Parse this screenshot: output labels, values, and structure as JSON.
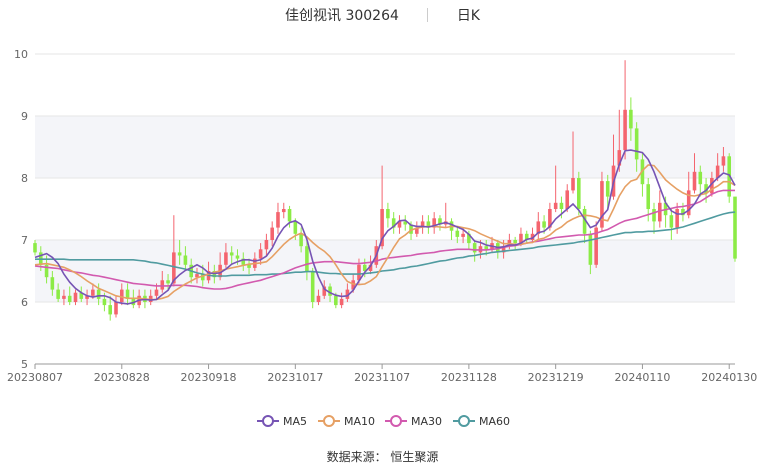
{
  "header": {
    "stock_name": "佳创视讯 300264",
    "period": "日K"
  },
  "footer": {
    "source_label": "数据来源：",
    "source_name": "恒生聚源"
  },
  "colors": {
    "up": "#F4646E",
    "down": "#8CEB46",
    "ma5": "#7654B4",
    "ma10": "#E6A064",
    "ma30": "#D25AAF",
    "ma60": "#509BA0"
  },
  "chart_data": {
    "type": "candlestick",
    "ylim": [
      5,
      10
    ],
    "yticks": [
      5,
      6,
      7,
      8,
      9,
      10
    ],
    "xtick_labels": [
      "20230807",
      "20230828",
      "20230918",
      "20231017",
      "20231107",
      "20231128",
      "20231219",
      "20240110",
      "20240130"
    ],
    "xtick_index": [
      0,
      15,
      30,
      45,
      60,
      75,
      90,
      105,
      120
    ],
    "legend": [
      "MA5",
      "MA10",
      "MA30",
      "MA60"
    ],
    "candles": [
      [
        6.95,
        6.8,
        7.0,
        6.75
      ],
      [
        6.8,
        6.6,
        6.9,
        6.5
      ],
      [
        6.6,
        6.4,
        6.75,
        6.3
      ],
      [
        6.4,
        6.2,
        6.5,
        6.1
      ],
      [
        6.2,
        6.05,
        6.3,
        6.0
      ],
      [
        6.05,
        6.1,
        6.2,
        5.95
      ],
      [
        6.1,
        6.0,
        6.25,
        5.95
      ],
      [
        6.0,
        6.15,
        6.2,
        5.95
      ],
      [
        6.15,
        6.05,
        6.25,
        6.0
      ],
      [
        6.05,
        6.1,
        6.2,
        5.95
      ],
      [
        6.1,
        6.2,
        6.3,
        6.05
      ],
      [
        6.2,
        6.05,
        6.3,
        5.95
      ],
      [
        6.05,
        5.95,
        6.15,
        5.85
      ],
      [
        5.95,
        5.8,
        6.1,
        5.7
      ],
      [
        5.8,
        6.0,
        6.1,
        5.75
      ],
      [
        6.0,
        6.2,
        6.3,
        5.95
      ],
      [
        6.2,
        6.05,
        6.3,
        5.95
      ],
      [
        6.05,
        5.95,
        6.2,
        5.9
      ],
      [
        5.95,
        6.1,
        6.2,
        5.9
      ],
      [
        6.1,
        6.0,
        6.2,
        5.9
      ],
      [
        6.0,
        6.1,
        6.2,
        5.95
      ],
      [
        6.1,
        6.2,
        6.3,
        6.05
      ],
      [
        6.2,
        6.35,
        6.5,
        6.15
      ],
      [
        6.35,
        6.3,
        6.45,
        6.2
      ],
      [
        6.3,
        6.8,
        7.4,
        6.25
      ],
      [
        6.8,
        6.75,
        7.0,
        6.6
      ],
      [
        6.75,
        6.6,
        6.9,
        6.5
      ],
      [
        6.6,
        6.4,
        6.7,
        6.3
      ],
      [
        6.4,
        6.45,
        6.55,
        6.3
      ],
      [
        6.45,
        6.35,
        6.6,
        6.25
      ],
      [
        6.35,
        6.5,
        6.65,
        6.3
      ],
      [
        6.5,
        6.4,
        6.6,
        6.3
      ],
      [
        6.4,
        6.6,
        6.8,
        6.35
      ],
      [
        6.6,
        6.8,
        6.95,
        6.55
      ],
      [
        6.8,
        6.75,
        6.9,
        6.6
      ],
      [
        6.75,
        6.7,
        6.85,
        6.6
      ],
      [
        6.7,
        6.6,
        6.8,
        6.5
      ],
      [
        6.6,
        6.55,
        6.7,
        6.45
      ],
      [
        6.55,
        6.7,
        6.8,
        6.5
      ],
      [
        6.7,
        6.85,
        6.95,
        6.6
      ],
      [
        6.85,
        7.0,
        7.1,
        6.75
      ],
      [
        7.0,
        7.2,
        7.3,
        6.9
      ],
      [
        7.2,
        7.45,
        7.6,
        7.1
      ],
      [
        7.45,
        7.5,
        7.6,
        7.35
      ],
      [
        7.5,
        7.3,
        7.55,
        7.2
      ],
      [
        7.3,
        7.1,
        7.35,
        7.0
      ],
      [
        7.1,
        6.9,
        7.2,
        6.8
      ],
      [
        6.9,
        6.5,
        7.0,
        6.35
      ],
      [
        6.5,
        6.0,
        6.55,
        5.9
      ],
      [
        6.0,
        6.1,
        6.2,
        5.95
      ],
      [
        6.1,
        6.25,
        6.35,
        6.05
      ],
      [
        6.25,
        6.1,
        6.3,
        6.0
      ],
      [
        6.1,
        5.95,
        6.15,
        5.9
      ],
      [
        5.95,
        6.05,
        6.15,
        5.9
      ],
      [
        6.05,
        6.2,
        6.3,
        6.0
      ],
      [
        6.2,
        6.35,
        6.45,
        6.15
      ],
      [
        6.35,
        6.6,
        6.7,
        6.3
      ],
      [
        6.6,
        6.5,
        6.7,
        6.4
      ],
      [
        6.5,
        6.6,
        6.75,
        6.45
      ],
      [
        6.6,
        6.9,
        7.0,
        6.55
      ],
      [
        6.9,
        7.5,
        8.2,
        6.85
      ],
      [
        7.5,
        7.35,
        7.6,
        7.2
      ],
      [
        7.35,
        7.2,
        7.45,
        7.1
      ],
      [
        7.2,
        7.3,
        7.4,
        7.1
      ],
      [
        7.3,
        7.25,
        7.4,
        7.15
      ],
      [
        7.25,
        7.1,
        7.3,
        7.0
      ],
      [
        7.1,
        7.2,
        7.3,
        7.05
      ],
      [
        7.2,
        7.3,
        7.4,
        7.1
      ],
      [
        7.3,
        7.2,
        7.4,
        7.1
      ],
      [
        7.2,
        7.35,
        7.45,
        7.1
      ],
      [
        7.35,
        7.25,
        7.4,
        7.15
      ],
      [
        7.25,
        7.3,
        7.6,
        7.2
      ],
      [
        7.3,
        7.15,
        7.35,
        7.0
      ],
      [
        7.15,
        7.05,
        7.2,
        6.95
      ],
      [
        7.05,
        7.1,
        7.2,
        6.95
      ],
      [
        7.1,
        6.95,
        7.15,
        6.85
      ],
      [
        6.95,
        6.8,
        7.0,
        6.65
      ],
      [
        6.8,
        6.9,
        7.0,
        6.7
      ],
      [
        6.9,
        6.85,
        7.0,
        6.75
      ],
      [
        6.85,
        6.95,
        7.05,
        6.8
      ],
      [
        6.95,
        6.8,
        7.0,
        6.7
      ],
      [
        6.8,
        6.9,
        7.0,
        6.7
      ],
      [
        6.9,
        7.0,
        7.1,
        6.85
      ],
      [
        7.0,
        6.95,
        7.05,
        6.85
      ],
      [
        6.95,
        7.1,
        7.2,
        6.9
      ],
      [
        7.1,
        7.0,
        7.15,
        6.95
      ],
      [
        7.0,
        7.1,
        7.2,
        6.95
      ],
      [
        7.1,
        7.3,
        7.45,
        7.0
      ],
      [
        7.3,
        7.2,
        7.4,
        7.1
      ],
      [
        7.2,
        7.5,
        7.6,
        7.15
      ],
      [
        7.5,
        7.6,
        8.2,
        7.45
      ],
      [
        7.6,
        7.5,
        7.7,
        7.35
      ],
      [
        7.5,
        7.8,
        7.9,
        7.45
      ],
      [
        7.8,
        8.0,
        8.75,
        7.75
      ],
      [
        8.0,
        7.5,
        8.1,
        7.4
      ],
      [
        7.5,
        7.1,
        7.55,
        6.95
      ],
      [
        7.1,
        6.6,
        7.15,
        6.45
      ],
      [
        6.6,
        7.2,
        7.3,
        6.55
      ],
      [
        7.2,
        7.95,
        8.1,
        7.15
      ],
      [
        7.95,
        7.7,
        8.05,
        7.5
      ],
      [
        7.7,
        8.2,
        8.7,
        7.65
      ],
      [
        8.2,
        8.45,
        9.1,
        8.1
      ],
      [
        8.45,
        9.1,
        9.9,
        8.3
      ],
      [
        9.1,
        8.8,
        9.3,
        8.6
      ],
      [
        8.8,
        8.3,
        8.9,
        8.1
      ],
      [
        8.3,
        7.9,
        8.4,
        7.7
      ],
      [
        7.9,
        7.5,
        8.0,
        7.3
      ],
      [
        7.5,
        7.3,
        7.6,
        7.1
      ],
      [
        7.3,
        7.6,
        7.8,
        7.2
      ],
      [
        7.6,
        7.4,
        7.7,
        7.2
      ],
      [
        7.4,
        7.2,
        7.5,
        7.0
      ],
      [
        7.2,
        7.5,
        7.6,
        7.1
      ],
      [
        7.5,
        7.4,
        7.6,
        7.3
      ],
      [
        7.4,
        7.8,
        8.1,
        7.35
      ],
      [
        7.8,
        8.1,
        8.4,
        7.75
      ],
      [
        8.1,
        7.9,
        8.2,
        7.7
      ],
      [
        7.9,
        7.75,
        8.0,
        7.6
      ],
      [
        7.75,
        8.0,
        8.1,
        7.7
      ],
      [
        8.0,
        8.2,
        8.4,
        7.95
      ],
      [
        8.2,
        8.35,
        8.5,
        8.1
      ],
      [
        8.35,
        7.7,
        8.4,
        7.6
      ],
      [
        7.7,
        6.7,
        7.2,
        6.65
      ]
    ],
    "ma5": [
      6.72,
      6.75,
      6.78,
      6.72,
      6.62,
      6.45,
      6.32,
      6.22,
      6.15,
      6.1,
      6.08,
      6.1,
      6.1,
      6.07,
      6.0,
      5.98,
      5.97,
      5.99,
      6.03,
      6.04,
      6.03,
      6.04,
      6.12,
      6.19,
      6.35,
      6.44,
      6.51,
      6.55,
      6.6,
      6.55,
      6.47,
      6.46,
      6.47,
      6.53,
      6.61,
      6.65,
      6.68,
      6.68,
      6.66,
      6.68,
      6.74,
      6.87,
      7.06,
      7.2,
      7.28,
      7.31,
      7.25,
      7.01,
      6.66,
      6.4,
      6.21,
      6.15,
      6.11,
      6.09,
      6.1,
      6.19,
      6.34,
      6.48,
      6.58,
      6.75,
      7.02,
      7.15,
      7.22,
      7.31,
      7.32,
      7.24,
      7.22,
      7.22,
      7.21,
      7.23,
      7.26,
      7.28,
      7.25,
      7.21,
      7.17,
      7.09,
      6.98,
      6.96,
      6.92,
      6.9,
      6.88,
      6.89,
      6.92,
      6.92,
      6.95,
      7.01,
      7.03,
      7.12,
      7.14,
      7.22,
      7.34,
      7.42,
      7.5,
      7.58,
      7.48,
      7.34,
      7.2,
      7.24,
      7.38,
      7.49,
      7.93,
      8.22,
      8.44,
      8.45,
      8.43,
      8.41,
      8.3,
      8.1,
      7.85,
      7.6,
      7.47,
      7.42,
      7.42,
      7.48,
      7.58,
      7.74,
      7.8,
      7.91,
      8.0,
      8.08,
      8.05,
      7.88
    ],
    "ma10": [
      6.6,
      6.61,
      6.62,
      6.6,
      6.58,
      6.56,
      6.52,
      6.47,
      6.41,
      6.34,
      6.28,
      6.22,
      6.18,
      6.14,
      6.1,
      6.08,
      6.06,
      6.06,
      6.06,
      6.05,
      6.04,
      6.04,
      6.06,
      6.09,
      6.17,
      6.23,
      6.29,
      6.34,
      6.39,
      6.42,
      6.45,
      6.48,
      6.5,
      6.53,
      6.55,
      6.57,
      6.59,
      6.61,
      6.62,
      6.63,
      6.65,
      6.73,
      6.83,
      6.93,
      7.01,
      7.07,
      7.11,
      7.05,
      6.96,
      6.88,
      6.82,
      6.73,
      6.6,
      6.45,
      6.33,
      6.29,
      6.28,
      6.29,
      6.34,
      6.41,
      6.57,
      6.72,
      6.88,
      7.02,
      7.08,
      7.16,
      7.19,
      7.21,
      7.22,
      7.22,
      7.21,
      7.2,
      7.22,
      7.22,
      7.2,
      7.18,
      7.15,
      7.1,
      7.06,
      7.02,
      6.98,
      6.94,
      6.94,
      6.93,
      6.93,
      6.95,
      6.96,
      7.01,
      7.03,
      7.08,
      7.16,
      7.21,
      7.29,
      7.34,
      7.38,
      7.4,
      7.39,
      7.37,
      7.33,
      7.31,
      7.5,
      7.71,
      7.86,
      7.95,
      7.98,
      8.12,
      8.21,
      8.2,
      8.09,
      7.97,
      7.89,
      7.82,
      7.76,
      7.72,
      7.71,
      7.73,
      7.75,
      7.82,
      7.87,
      7.94,
      7.94,
      7.88
    ],
    "ma30": [
      6.58,
      6.57,
      6.56,
      6.55,
      6.54,
      6.52,
      6.5,
      6.48,
      6.47,
      6.45,
      6.43,
      6.42,
      6.4,
      6.38,
      6.36,
      6.34,
      6.32,
      6.3,
      6.29,
      6.28,
      6.27,
      6.26,
      6.26,
      6.26,
      6.27,
      6.27,
      6.27,
      6.26,
      6.25,
      6.23,
      6.22,
      6.21,
      6.21,
      6.22,
      6.24,
      6.27,
      6.29,
      6.31,
      6.33,
      6.35,
      6.38,
      6.41,
      6.44,
      6.47,
      6.51,
      6.55,
      6.58,
      6.61,
      6.63,
      6.64,
      6.65,
      6.65,
      6.65,
      6.64,
      6.63,
      6.62,
      6.62,
      6.63,
      6.64,
      6.66,
      6.69,
      6.71,
      6.72,
      6.73,
      6.74,
      6.75,
      6.77,
      6.78,
      6.79,
      6.8,
      6.82,
      6.83,
      6.84,
      6.85,
      6.85,
      6.85,
      6.84,
      6.84,
      6.84,
      6.85,
      6.86,
      6.88,
      6.9,
      6.91,
      6.93,
      6.95,
      6.97,
      6.98,
      7.0,
      7.02,
      7.04,
      7.05,
      7.06,
      7.07,
      7.08,
      7.08,
      7.09,
      7.11,
      7.14,
      7.17,
      7.22,
      7.27,
      7.31,
      7.33,
      7.35,
      7.38,
      7.41,
      7.44,
      7.47,
      7.49,
      7.51,
      7.53,
      7.54,
      7.56,
      7.58,
      7.62,
      7.68,
      7.74,
      7.78,
      7.8,
      7.8,
      7.8
    ],
    "ma60": [
      6.69,
      6.69,
      6.69,
      6.69,
      6.69,
      6.69,
      6.68,
      6.68,
      6.68,
      6.68,
      6.68,
      6.68,
      6.68,
      6.68,
      6.68,
      6.68,
      6.68,
      6.68,
      6.67,
      6.66,
      6.64,
      6.63,
      6.61,
      6.59,
      6.57,
      6.55,
      6.53,
      6.5,
      6.47,
      6.45,
      6.43,
      6.42,
      6.42,
      6.42,
      6.43,
      6.43,
      6.43,
      6.43,
      6.44,
      6.44,
      6.44,
      6.45,
      6.45,
      6.46,
      6.47,
      6.48,
      6.48,
      6.49,
      6.49,
      6.48,
      6.47,
      6.46,
      6.46,
      6.45,
      6.45,
      6.45,
      6.45,
      6.46,
      6.47,
      6.48,
      6.5,
      6.51,
      6.52,
      6.54,
      6.55,
      6.57,
      6.58,
      6.6,
      6.62,
      6.64,
      6.66,
      6.67,
      6.69,
      6.71,
      6.72,
      6.74,
      6.75,
      6.77,
      6.78,
      6.8,
      6.81,
      6.82,
      6.83,
      6.84,
      6.85,
      6.86,
      6.87,
      6.89,
      6.9,
      6.91,
      6.92,
      6.93,
      6.94,
      6.95,
      6.97,
      6.98,
      7.0,
      7.02,
      7.04,
      7.06,
      7.08,
      7.1,
      7.12,
      7.12,
      7.13,
      7.13,
      7.14,
      7.14,
      7.15,
      7.16,
      7.17,
      7.19,
      7.21,
      7.24,
      7.27,
      7.3,
      7.33,
      7.36,
      7.39,
      7.42,
      7.44,
      7.45
    ]
  }
}
